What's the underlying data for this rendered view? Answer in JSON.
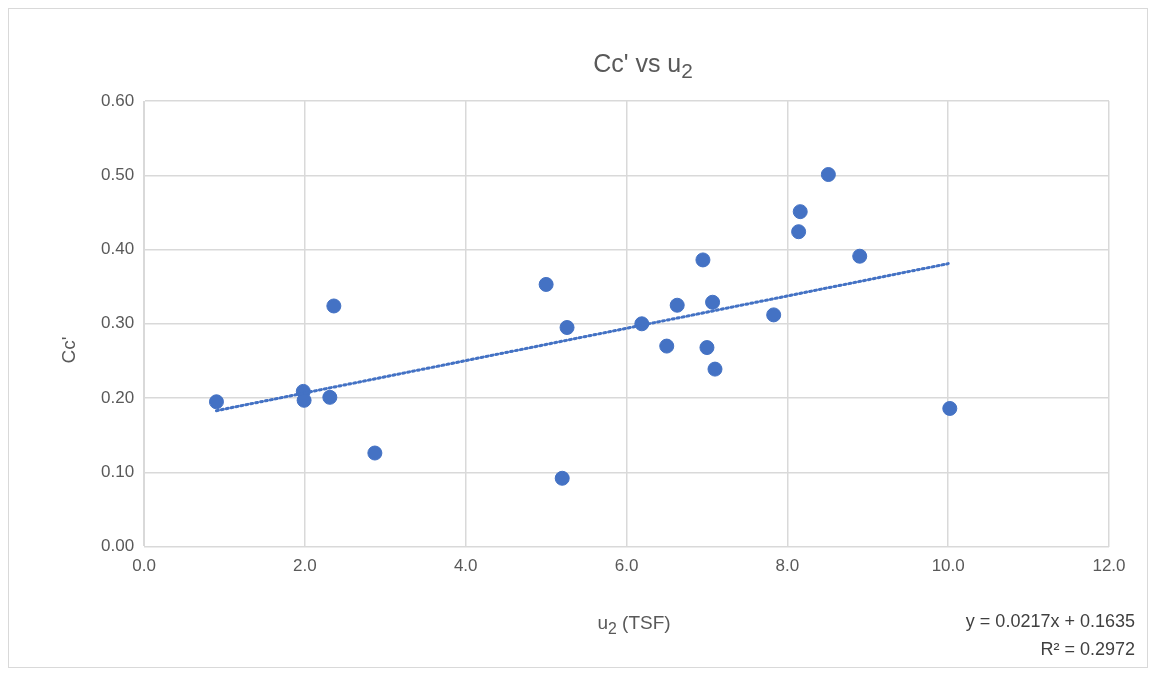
{
  "chart_data": {
    "type": "scatter",
    "title": "Cc' vs u$_{2}$",
    "xlabel": "u$_{2}$ (TSF)",
    "ylabel": "Cc'",
    "xlim": [
      0,
      12
    ],
    "xticks": [
      {
        "value": 0,
        "label": "0.0"
      },
      {
        "value": 2,
        "label": "2.0"
      },
      {
        "value": 4,
        "label": "4.0"
      },
      {
        "value": 6,
        "label": "6.0"
      },
      {
        "value": 8,
        "label": "8.0"
      },
      {
        "value": 10,
        "label": "10.0"
      },
      {
        "value": 12,
        "label": "12.0"
      }
    ],
    "ylim": [
      0,
      0.6
    ],
    "yticks": [
      {
        "value": 0,
        "label": "0.00"
      },
      {
        "value": 0.1,
        "label": "0.10"
      },
      {
        "value": 0.2,
        "label": "0.20"
      },
      {
        "value": 0.3,
        "label": "0.30"
      },
      {
        "value": 0.4,
        "label": "0.40"
      },
      {
        "value": 0.5,
        "label": "0.50"
      },
      {
        "value": 0.6,
        "label": "0.60"
      }
    ],
    "grid": true,
    "marker": "circle",
    "series": [
      {
        "type": "scatter",
        "color": "#4472c4",
        "x": [
          0.9,
          1.98,
          1.99,
          2.31,
          2.36,
          2.87,
          5.0,
          5.2,
          5.26,
          6.19,
          6.5,
          6.63,
          6.95,
          7.0,
          7.07,
          7.1,
          7.83,
          8.14,
          8.16,
          8.51,
          8.9,
          10.02
        ],
        "values": [
          0.195,
          0.209,
          0.197,
          0.201,
          0.324,
          0.126,
          0.353,
          0.092,
          0.295,
          0.3,
          0.27,
          0.325,
          0.386,
          0.268,
          0.329,
          0.239,
          0.312,
          0.424,
          0.451,
          0.501,
          0.391,
          0.186
        ]
      },
      {
        "type": "line",
        "color": "#4472c4",
        "line_style": "dotted",
        "marker": "none",
        "x": [
          0.9,
          10
        ],
        "values": [
          0.183,
          0.381
        ]
      }
    ],
    "annotations": [
      "y = 0.0217x + 0.1635",
      "R² = 0.2972"
    ]
  }
}
